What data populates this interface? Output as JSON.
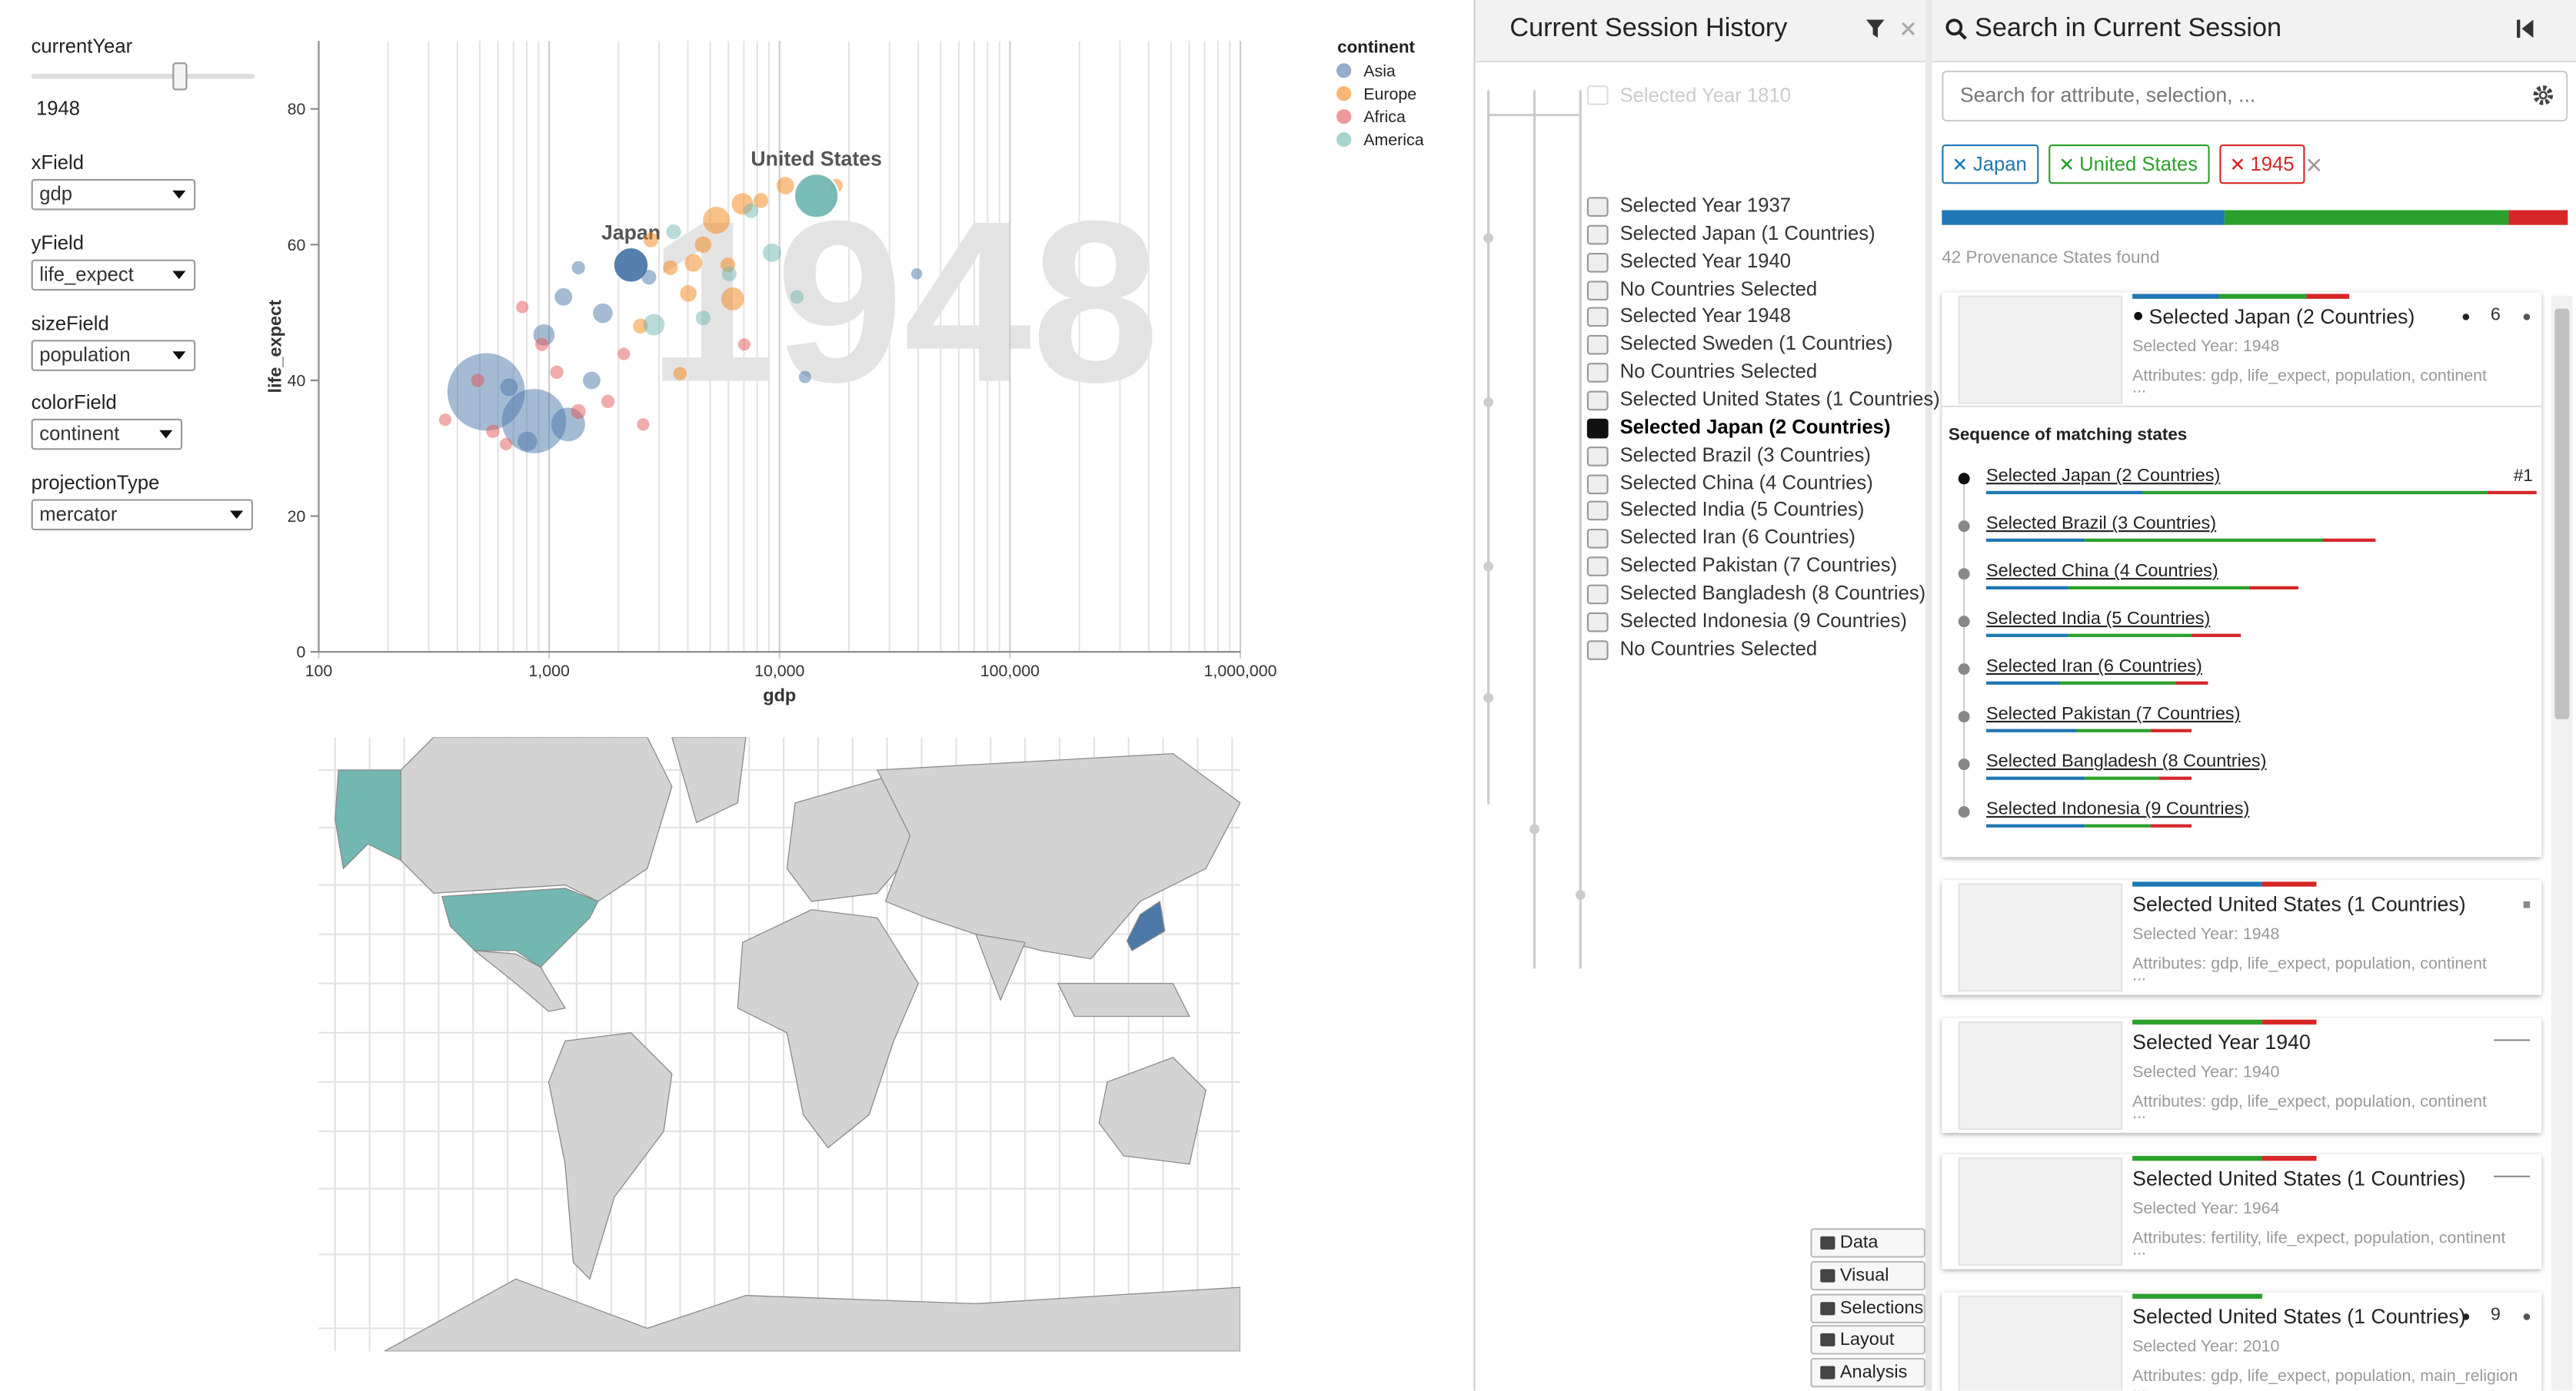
{
  "controls": {
    "year_label": "currentYear",
    "year_value": "1948",
    "fields": [
      {
        "label": "xField",
        "value": "gdp"
      },
      {
        "label": "yField",
        "value": "life_expect"
      },
      {
        "label": "sizeField",
        "value": "population"
      },
      {
        "label": "colorField",
        "value": "continent"
      },
      {
        "label": "projectionType",
        "value": "mercator"
      }
    ]
  },
  "scatter": {
    "type": "scatter",
    "x_label": "gdp",
    "y_label": "life_expect",
    "watermark": "1948",
    "xscale": "log",
    "minor_gridlines": true,
    "xlim": [
      100,
      1000000
    ],
    "xticks": [
      100,
      {
        "value": 1000,
        "label": "1,000"
      },
      {
        "value": 10000,
        "label": "10,000"
      },
      {
        "value": 100000,
        "label": "100,000"
      },
      {
        "value": 1000000,
        "label": "1,000,000"
      }
    ],
    "ylim": [
      0,
      90
    ],
    "yticks": [
      0,
      20,
      40,
      60,
      80
    ],
    "legend_title": "continent",
    "series": [
      {
        "name": "Asia",
        "color": "#4c78a8",
        "x": [
          533,
          860,
          2265,
          1154,
          950,
          1710,
          2710,
          1530,
          1210,
          805,
          1340,
          39400,
          12900,
          670
        ],
        "y": [
          38.3,
          34,
          57,
          52.3,
          46.7,
          49.9,
          55.2,
          40,
          33.5,
          31,
          56.6,
          55.7,
          40.5,
          39
        ],
        "size": [
          550,
          360,
          82,
          10,
          20,
          15,
          5,
          10,
          75,
          15,
          3,
          1,
          2,
          10
        ],
        "labels": [
          null,
          null,
          "Japan",
          null,
          null,
          null,
          null,
          null,
          null,
          null,
          null,
          null,
          null,
          null
        ]
      },
      {
        "name": "Europe",
        "color": "#f58518",
        "x": [
          5320,
          6900,
          6260,
          10600,
          4230,
          3360,
          2760,
          4020,
          8300,
          2490,
          3700,
          17600,
          5970,
          4660
        ],
        "y": [
          63.6,
          66,
          52,
          68.7,
          57.3,
          56.6,
          60.7,
          52.8,
          66.5,
          48,
          41,
          68.7,
          57,
          60
        ],
        "size": [
          40,
          20,
          25,
          10,
          10,
          5,
          5,
          8,
          5,
          5,
          3,
          3,
          5,
          8
        ],
        "labels": [
          null,
          null,
          null,
          null,
          null,
          null,
          null,
          null,
          null,
          null,
          null,
          null,
          null,
          null
        ]
      },
      {
        "name": "Africa",
        "color": "#e45756",
        "x": [
          354,
          570,
          765,
          930,
          1340,
          1800,
          2560,
          7030,
          490,
          1080,
          650,
          2110
        ],
        "y": [
          34.2,
          32.5,
          50.8,
          45.3,
          35.4,
          36.9,
          33.5,
          45.3,
          40,
          41.2,
          30.6,
          43.9
        ],
        "size": [
          2,
          3,
          2,
          3,
          5,
          3,
          2,
          2,
          3,
          3,
          2,
          2
        ],
        "labels": [
          null,
          null,
          null,
          null,
          null,
          null,
          null,
          null,
          null,
          null,
          null,
          null
        ]
      },
      {
        "name": "America",
        "color": "#72b7b2",
        "x": [
          14450,
          2850,
          9280,
          3470,
          6050,
          11900,
          7520,
          4660
        ],
        "y": [
          67.2,
          48.2,
          58.8,
          61.9,
          55.7,
          52.3,
          65,
          49.2
        ],
        "size": [
          146,
          20,
          12,
          5,
          5,
          3,
          5,
          5
        ],
        "labels": [
          "United States",
          null,
          null,
          null,
          null,
          null,
          null,
          null
        ]
      }
    ]
  },
  "history": {
    "title": "Current Session History",
    "hidden_item": "Selected Year 1810",
    "active": 8,
    "items": [
      "Selected Year 1937",
      "Selected Japan (1 Countries)",
      "Selected Year 1940",
      "No Countries Selected",
      "Selected Year 1948",
      "Selected Sweden (1 Countries)",
      "No Countries Selected",
      "Selected United States (1 Countries)",
      "Selected Japan (2 Countries)",
      "Selected Brazil (3 Countries)",
      "Selected China (4 Countries)",
      "Selected India (5 Countries)",
      "Selected Iran (6 Countries)",
      "Selected Pakistan (7 Countries)",
      "Selected Bangladesh (8 Countries)",
      "Selected Indonesia (9 Countries)",
      "No Countries Selected"
    ],
    "buttons": [
      "Data",
      "Visual",
      "Selections",
      "Layout",
      "Analysis"
    ]
  },
  "search": {
    "title": "Search in Current Session",
    "placeholder": "Search for attribute, selection, ...",
    "tags": [
      {
        "text": "Japan",
        "color": "#1f77b4"
      },
      {
        "text": "United States",
        "color": "#2ca02c"
      },
      {
        "text": "1945",
        "color": "#d62728"
      }
    ],
    "found": "42 Provenance States found",
    "results": [
      {
        "title": "Selected Japan (2 Countries)",
        "year": "Selected Year: 1948",
        "attributes": "Attributes: gdp, life_expect, population, continent",
        "more": "...",
        "count": "6"
      },
      {
        "title": "Selected United States (1 Countries)",
        "year": "Selected Year: 1948",
        "attributes": "Attributes: gdp, life_expect, population, continent",
        "more": "...",
        "count": null
      },
      {
        "title": "Selected Year 1940",
        "year": "Selected Year: 1940",
        "attributes": "Attributes: gdp, life_expect, population, continent",
        "more": "...",
        "count": null
      },
      {
        "title": "Selected United States (1 Countries)",
        "year": "Selected Year: 1964",
        "attributes": "Attributes: fertility, life_expect, population, continent",
        "more": "...",
        "count": null
      },
      {
        "title": "Selected United States (1 Countries)",
        "year": "Selected Year: 2010",
        "attributes": "Attributes: gdp, life_expect, population, main_religion",
        "more": "...",
        "count": "9"
      }
    ],
    "sequence": {
      "title": "Sequence of matching states",
      "rank": "#1",
      "items": [
        "Selected Japan (2 Countries)",
        "Selected Brazil (3 Countries)",
        "Selected China (4 Countries)",
        "Selected India (5 Countries)",
        "Selected Iran (6 Countries)",
        "Selected Pakistan (7 Countries)",
        "Selected Bangladesh (8 Countries)",
        "Selected Indonesia (9 Countries)"
      ]
    }
  }
}
